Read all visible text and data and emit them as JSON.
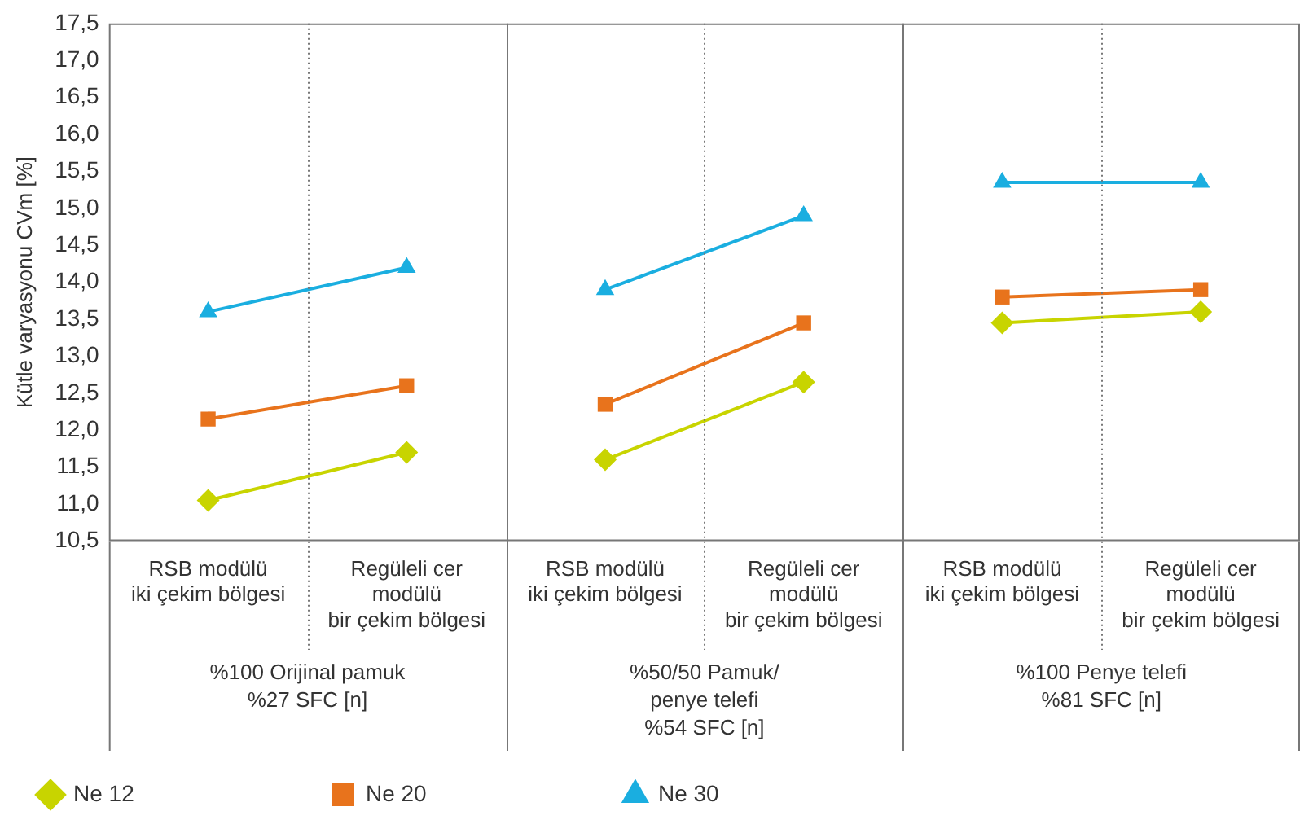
{
  "chart_data": {
    "type": "line",
    "ylabel": "Kütle varyasyonu CVm [%]",
    "categories": [
      "RSB modülü\niki çekim bölgesi",
      "Regüleli cer\nmodülü\nbir çekim bölgesi",
      "RSB modülü\niki çekim bölgesi",
      "Regüleli cer\nmodülü\nbir çekim bölgesi",
      "RSB modülü\niki çekim bölgesi",
      "Regüleli cer\nmodülü\nbir çekim bölgesi"
    ],
    "annotations": [
      "%100 Orijinal pamuk\n%27 SFC [n]",
      "%50/50 Pamuk/\npenye telefi\n%54 SFC [n]",
      "%100 Penye telefi\n%81 SFC [n]"
    ],
    "series": [
      {
        "name": "Ne 12",
        "color": "#c8d400",
        "marker": "diamond",
        "values": [
          11.05,
          11.7,
          11.6,
          12.65,
          13.45,
          13.6
        ]
      },
      {
        "name": "Ne 20",
        "color": "#e8731c",
        "marker": "square",
        "values": [
          12.15,
          12.6,
          12.35,
          13.45,
          13.8,
          13.9
        ]
      },
      {
        "name": "Ne 30",
        "color": "#1aaee0",
        "marker": "triangle",
        "values": [
          13.6,
          14.2,
          13.9,
          14.9,
          15.35,
          15.35
        ]
      }
    ],
    "ylim": [
      10.5,
      17.5
    ],
    "yticks": [
      {
        "value": 10.5,
        "label": "10,5"
      },
      {
        "value": 11,
        "label": "11,0"
      },
      {
        "value": 11.5,
        "label": "11,5"
      },
      {
        "value": 12,
        "label": "12,0"
      },
      {
        "value": 12.5,
        "label": "12,5"
      },
      {
        "value": 13,
        "label": "13,0"
      },
      {
        "value": 13.5,
        "label": "13,5"
      },
      {
        "value": 14,
        "label": "14,0"
      },
      {
        "value": 14.5,
        "label": "14,5"
      },
      {
        "value": 15,
        "label": "15,0"
      },
      {
        "value": 15.5,
        "label": "15,5"
      },
      {
        "value": 16,
        "label": "16,0"
      },
      {
        "value": 16.5,
        "label": "16,5"
      },
      {
        "value": 17,
        "label": "17,0"
      },
      {
        "value": 17.5,
        "label": "17,5"
      }
    ],
    "grid": "x",
    "legend": "bottom"
  }
}
